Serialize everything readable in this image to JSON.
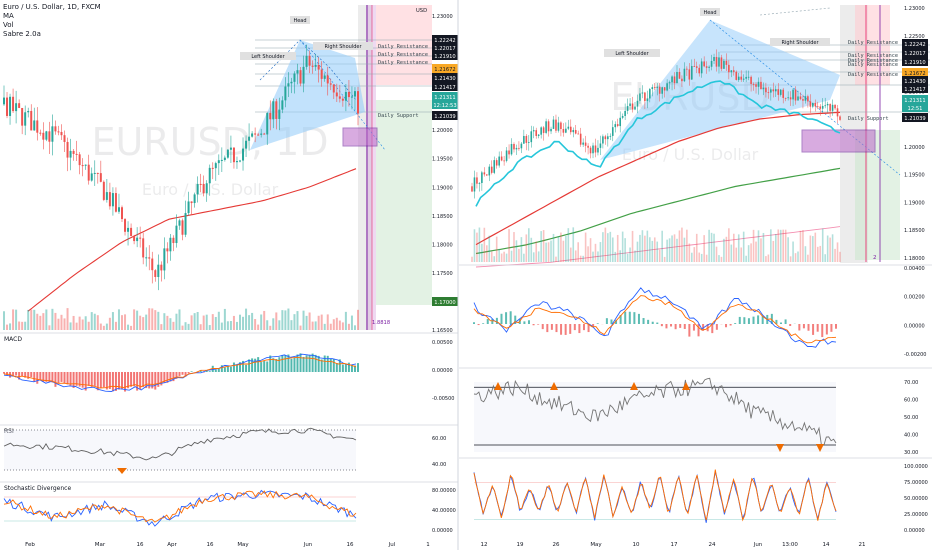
{
  "header": {
    "symbol": "Euro / U.S. Dollar, 1D, FXCM",
    "indicators": [
      "MA",
      "Vol",
      "Sabre 2.0a"
    ]
  },
  "colors": {
    "up": "#26a69a",
    "down": "#ef5350",
    "ma": "#e53935",
    "macd": "#2962ff",
    "signal": "#ff6d00",
    "stoch_k": "#2962ff",
    "stoch_d": "#ff6d00",
    "wedge": "#90caf9",
    "target_box": "#ce93d8",
    "green_ma": "#43a047"
  },
  "watermark": {
    "left_big": "EURUSD, 1D",
    "left_small": "Euro / U.S. Dollar",
    "right_big": "EURUSD",
    "right_small": "Euro / U.S. Dollar"
  },
  "left": {
    "currency": "USD",
    "pattern_labels": {
      "head": "Head",
      "left_shoulder": "Left Shoulder",
      "right_shoulder": "Right Shoulder"
    },
    "level_labels": [
      "Daily Resistance",
      "Daily Resistance",
      "Daily Resistance",
      "Daily Support"
    ],
    "price_axis": [
      "1.23000",
      "1.21500",
      "1.21000",
      "1.20500",
      "1.20000",
      "1.19500",
      "1.19000",
      "1.18500",
      "1.18000",
      "1.17500",
      "1.17000",
      "1.16500"
    ],
    "price_tags": [
      {
        "value": "1.22242",
        "bg": "#131722"
      },
      {
        "value": "1.22017",
        "bg": "#131722"
      },
      {
        "value": "1.21910",
        "bg": "#131722"
      },
      {
        "value": "1.21672",
        "bg": "#f9a825"
      },
      {
        "value": "1.21430",
        "bg": "#131722"
      },
      {
        "value": "1.21417",
        "bg": "#131722"
      },
      {
        "value": "1.21311",
        "bg": "#26a69a"
      },
      {
        "value": "12:12:53",
        "bg": "#26a69a"
      },
      {
        "value": "1.21039",
        "bg": "#131722"
      },
      {
        "value": "1.17000",
        "bg": "#2e7d32"
      }
    ],
    "ratio_label": "1.8818",
    "macd": {
      "title": "MACD",
      "axis": [
        "0.00500",
        "0.00000",
        "-0.00500"
      ]
    },
    "rsi": {
      "title": "RSI",
      "axis": [
        "60.00",
        "40.00"
      ]
    },
    "stoch": {
      "title": "Stochastic Divergence",
      "axis": [
        "80.00000",
        "40.00000",
        "0.00000"
      ]
    },
    "time_axis": [
      "Feb",
      "Mar",
      "16",
      "Apr",
      "16",
      "May",
      "Jun",
      "16",
      "Jul",
      "1"
    ]
  },
  "right": {
    "pattern_labels": {
      "head": "Head",
      "left_shoulder": "Left Shoulder",
      "right_shoulder": "Right Shoulder"
    },
    "level_labels": [
      "Daily Resistance",
      "Daily Resistance",
      "Daily Resistance",
      "Daily Resistance",
      "Daily Resistance",
      "Daily Support"
    ],
    "price_axis": [
      "1.23000",
      "1.22500",
      "1.21500",
      "1.21000",
      "1.20500",
      "1.20000",
      "1.19500",
      "1.19000",
      "1.18500",
      "1.18000"
    ],
    "price_tags": [
      {
        "value": "1.22242",
        "bg": "#131722"
      },
      {
        "value": "1.22017",
        "bg": "#131722"
      },
      {
        "value": "1.21910",
        "bg": "#131722"
      },
      {
        "value": "1.21672",
        "bg": "#f9a825"
      },
      {
        "value": "1.21430",
        "bg": "#131722"
      },
      {
        "value": "1.21417",
        "bg": "#131722"
      },
      {
        "value": "1.21311",
        "bg": "#26a69a"
      },
      {
        "value": "12:51",
        "bg": "#26a69a"
      },
      {
        "value": "1.21039",
        "bg": "#131722"
      }
    ],
    "count_label": "2",
    "macd_axis": [
      "0.00400",
      "0.00200",
      "0.00000",
      "-0.00200"
    ],
    "rsi_axis": [
      "70.00",
      "60.00",
      "50.00",
      "40.00",
      "30.00"
    ],
    "stoch_axis": [
      "100.0000",
      "75.00000",
      "50.00000",
      "25.00000",
      "0.00000"
    ],
    "time_axis": [
      "12",
      "19",
      "26",
      "May",
      "10",
      "17",
      "24",
      "Jun",
      "13:00",
      "14",
      "21"
    ]
  },
  "chart_data": [
    {
      "type": "candlestick",
      "title": "Euro / U.S. Dollar, 1D, FXCM",
      "ylim": [
        1.165,
        1.232
      ],
      "categories": [
        "Feb",
        "Mar",
        "16",
        "Apr",
        "16",
        "May",
        "Jun",
        "16"
      ],
      "close": [
        1.213,
        1.206,
        1.194,
        1.176,
        1.197,
        1.206,
        1.222,
        1.213
      ],
      "ma": [
        1.168,
        1.176,
        1.183,
        1.188,
        1.19,
        1.192,
        1.195,
        1.199
      ],
      "macd": [
        -0.001,
        -0.004,
        -0.006,
        -0.005,
        0.001,
        0.004,
        0.006,
        0.002
      ],
      "rsi": [
        48,
        45,
        40,
        33,
        52,
        60,
        62,
        52
      ],
      "stoch": [
        70,
        30,
        60,
        15,
        75,
        85,
        80,
        35
      ]
    },
    {
      "type": "candlestick",
      "ylim": [
        1.18,
        1.232
      ],
      "categories": [
        "12",
        "19",
        "26",
        "May",
        "10",
        "17",
        "24",
        "Jun",
        "13:00",
        "14"
      ],
      "close": [
        1.196,
        1.205,
        1.21,
        1.204,
        1.215,
        1.22,
        1.224,
        1.218,
        1.216,
        1.212
      ],
      "ma": [
        1.183,
        1.188,
        1.193,
        1.198,
        1.202,
        1.206,
        1.209,
        1.211,
        1.212,
        1.2125
      ],
      "rsi": [
        62,
        67,
        58,
        50,
        60,
        66,
        68,
        52,
        45,
        34
      ]
    }
  ]
}
